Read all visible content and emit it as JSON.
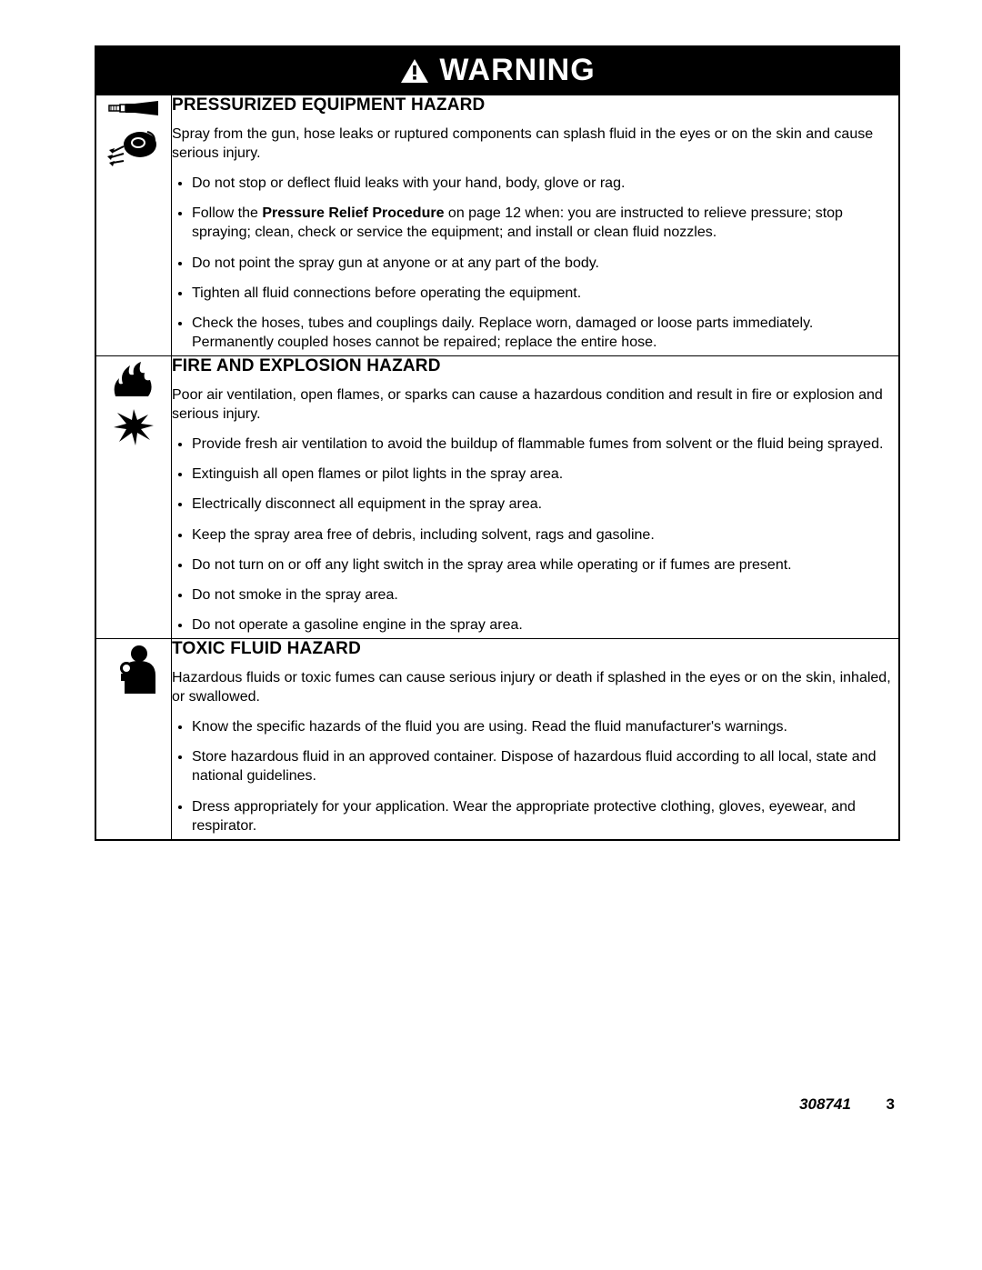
{
  "header": "WARNING",
  "footer": {
    "doc": "308741",
    "page": "3"
  },
  "sections": [
    {
      "title": "PRESSURIZED EQUIPMENT HAZARD",
      "intro": "Spray from the gun, hose leaks or ruptured components can splash fluid in the eyes or on the skin and cause serious injury.",
      "bullets": [
        "Do not stop or deflect fluid leaks with your hand, body, glove or rag.",
        "Follow the <b>Pressure Relief Procedure</b> on page 12 when: you are instructed to relieve pressure; stop spraying; clean, check or service the equipment; and install or clean fluid nozzles.",
        "Do not point the spray gun at anyone or at any part of the body.",
        "Tighten all fluid connections before operating the equipment.",
        "Check the hoses, tubes and couplings daily. Replace worn, damaged or loose parts immediately. Permanently coupled hoses cannot be repaired; replace the entire hose."
      ]
    },
    {
      "title": "FIRE AND EXPLOSION HAZARD",
      "intro": "Poor air ventilation, open flames, or sparks can cause a hazardous condition and result in fire or explosion and serious injury.",
      "bullets": [
        "Provide fresh air ventilation to avoid the buildup of flammable fumes from solvent or the fluid being sprayed.",
        "Extinguish all open flames or pilot lights in the spray area.",
        "Electrically disconnect all equipment in the spray area.",
        "Keep the spray area free of debris, including solvent, rags and gasoline.",
        "Do not turn on or off any light switch in the spray area while operating or if fumes are present.",
        "Do not smoke in the spray area.",
        "Do not operate a gasoline engine in the spray area."
      ]
    },
    {
      "title": "TOXIC FLUID HAZARD",
      "intro": "Hazardous fluids or toxic fumes can cause serious injury or death if splashed in the eyes or on the skin, inhaled, or swallowed.",
      "bullets": [
        "Know the specific hazards of the fluid you are using. Read the fluid manufacturer's warnings.",
        "Store hazardous fluid in an approved container. Dispose of hazardous fluid according to all local, state and national guidelines.",
        "Dress appropriately for your application. Wear the appropriate protective clothing, gloves, eyewear, and respirator."
      ]
    }
  ]
}
